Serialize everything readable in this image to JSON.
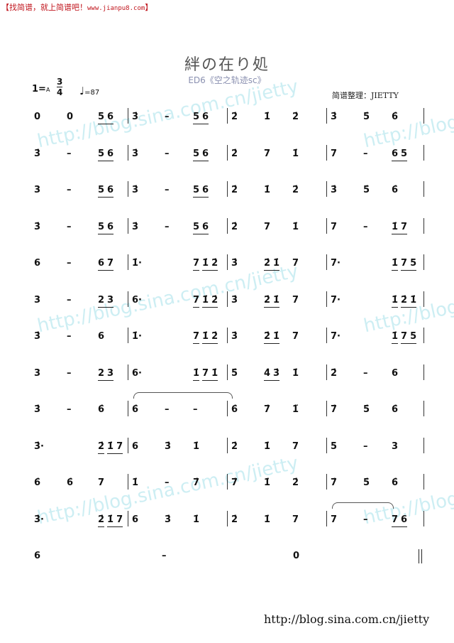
{
  "banner": {
    "text": "【找简谱，就上简谱吧！",
    "url": "www.jianpu8.com",
    "end": "】",
    "color": "#c0141c"
  },
  "title": "絆の在り処",
  "subtitle": "ED6《空之轨迹sc》",
  "key": {
    "one": "1=",
    "note": "A"
  },
  "time_signature": {
    "top": "3",
    "bottom": "4"
  },
  "tempo": {
    "symbol": "♩",
    "value": "=87"
  },
  "arranger": "简谱整理：JIETTY",
  "watermark": "http://blog.sina.com.cn/jietty",
  "footer": "http://blog.sina.com.cn/jietty",
  "rows": [
    [
      [
        "0",
        "0",
        [
          [
            "5",
            "6"
          ]
        ]
      ],
      [
        "3̇",
        "–",
        [
          [
            "5",
            "6"
          ]
        ]
      ],
      [
        "2̇",
        "1̇",
        "2̇"
      ],
      [
        "3̇",
        "5̇",
        "6̇"
      ]
    ],
    [
      [
        "3̇",
        "–",
        [
          [
            "5",
            "6"
          ]
        ]
      ],
      [
        "3̇",
        "–",
        [
          [
            "5",
            "6"
          ]
        ]
      ],
      [
        "2̇",
        "7",
        "1̇"
      ],
      [
        "7",
        "–",
        [
          [
            "6",
            "5"
          ]
        ]
      ]
    ],
    [
      [
        "3",
        "–",
        [
          [
            "5",
            "6"
          ]
        ]
      ],
      [
        "3̇",
        "–",
        [
          [
            "5",
            "6"
          ]
        ]
      ],
      [
        "2̇",
        "1̇",
        "2̇"
      ],
      [
        "3̇",
        "5̇",
        "6̇"
      ]
    ],
    [
      [
        "3̇",
        "–",
        [
          [
            "5",
            "6"
          ]
        ]
      ],
      [
        "3̇",
        "–",
        [
          [
            "5",
            "6"
          ]
        ]
      ],
      [
        "2̇",
        "7",
        "1̇"
      ],
      [
        "7",
        "–",
        [
          [
            "1̇",
            "7"
          ]
        ]
      ]
    ],
    [
      [
        "6",
        "–",
        [
          [
            "6",
            "7"
          ]
        ]
      ],
      [
        "1̇·",
        "",
        [
          [
            "7"
          ],
          [
            "1̇",
            "2̇"
          ]
        ]
      ],
      [
        "3̇",
        [
          [
            "2̇",
            "1̇"
          ]
        ],
        "7"
      ],
      [
        "7·",
        "",
        [
          [
            "1̇"
          ],
          [
            "7",
            "5"
          ]
        ]
      ]
    ],
    [
      [
        "3",
        "–",
        [
          [
            "2",
            "3"
          ]
        ]
      ],
      [
        "6·",
        "",
        [
          [
            "7"
          ],
          [
            "1̇",
            "2̇"
          ]
        ]
      ],
      [
        "3̇",
        [
          [
            "2̇",
            "1̇"
          ]
        ],
        "7"
      ],
      [
        "7·",
        "",
        [
          [
            "1̇"
          ],
          [
            "2̇",
            "1̇"
          ]
        ]
      ]
    ],
    [
      [
        "3̇",
        "–",
        "6"
      ],
      [
        "1̇·",
        "",
        [
          [
            "7"
          ],
          [
            "1̇",
            "2̇"
          ]
        ]
      ],
      [
        "3̇",
        [
          [
            "2̇",
            "1̇"
          ]
        ],
        "7"
      ],
      [
        "7·",
        "",
        [
          [
            "1̇"
          ],
          [
            "7",
            "5"
          ]
        ]
      ]
    ],
    [
      [
        "3",
        "–",
        [
          [
            "2",
            "3"
          ]
        ]
      ],
      [
        "6·",
        "",
        [
          [
            "1̇"
          ],
          [
            "7",
            "1̇"
          ]
        ]
      ],
      [
        "5̇",
        [
          [
            "4̇",
            "3̇"
          ]
        ],
        "1̇"
      ],
      [
        "2̇",
        "–",
        "6"
      ]
    ],
    [
      [
        "3̇",
        "–",
        "6̇"
      ],
      [
        "6̇",
        "–",
        "–"
      ],
      [
        "6̇",
        "7̇",
        "1̈"
      ],
      [
        "7̇",
        "5̇",
        "6̇"
      ]
    ],
    [
      [
        "3̇·",
        "",
        [
          [
            "2̇"
          ],
          [
            "1̇",
            "7"
          ]
        ]
      ],
      [
        "6",
        "3̇",
        "1̇"
      ],
      [
        "2̇",
        "1̇",
        "7"
      ],
      [
        "5",
        "–",
        "3"
      ]
    ],
    [
      [
        "6̇",
        "6̇",
        "7"
      ],
      [
        "1̇",
        "–",
        "7̇"
      ],
      [
        "7̇",
        "1̇",
        "2̇"
      ],
      [
        "7̇",
        "5̇",
        "6̇"
      ]
    ],
    [
      [
        "3̇·",
        "",
        [
          [
            "2̇"
          ],
          [
            "1̇",
            "7"
          ]
        ]
      ],
      [
        "6",
        "3̇",
        "1̇"
      ],
      [
        "2̇",
        "1̇",
        "7"
      ],
      [
        "7",
        "–",
        [
          [
            "7",
            "6"
          ]
        ]
      ]
    ]
  ],
  "final_row": [
    "6",
    "–",
    "0"
  ]
}
